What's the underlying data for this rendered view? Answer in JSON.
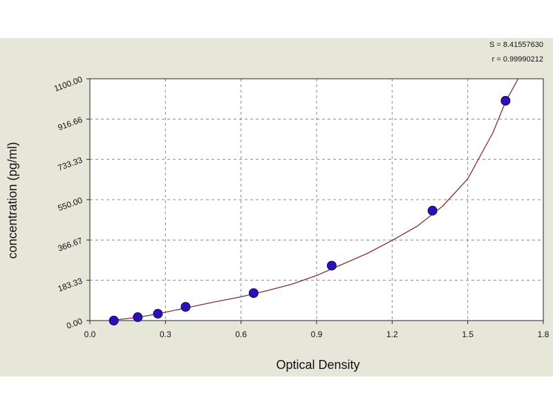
{
  "chart_data": {
    "type": "scatter",
    "title": "",
    "xlabel": "Optical Density",
    "ylabel": "concentration (pg/ml)",
    "xlim": [
      0.0,
      1.8
    ],
    "ylim": [
      0.0,
      1100.0
    ],
    "x_ticks": [
      0.0,
      0.3,
      0.6,
      0.9,
      1.2,
      1.5,
      1.8
    ],
    "x_tick_labels": [
      "0.0",
      "0.3",
      "0.6",
      "0.9",
      "1.2",
      "1.5",
      "1.8"
    ],
    "y_ticks": [
      0.0,
      183.33,
      366.67,
      550.0,
      733.33,
      916.66,
      1100.0
    ],
    "y_tick_labels": [
      "0.00",
      "183.33",
      "366.67",
      "550.00",
      "733.33",
      "916.66",
      "1100.00"
    ],
    "grid": true,
    "points": [
      {
        "x": 0.095,
        "y": 0.0
      },
      {
        "x": 0.19,
        "y": 15.6
      },
      {
        "x": 0.27,
        "y": 31.2
      },
      {
        "x": 0.38,
        "y": 62.5
      },
      {
        "x": 0.65,
        "y": 125.0
      },
      {
        "x": 0.96,
        "y": 250.0
      },
      {
        "x": 1.36,
        "y": 500.0
      },
      {
        "x": 1.65,
        "y": 1000.0
      }
    ],
    "fit_curve": {
      "type": "four-parameter-logistic",
      "x": [
        0.08,
        0.2,
        0.3,
        0.4,
        0.5,
        0.6,
        0.7,
        0.8,
        0.9,
        1.0,
        1.1,
        1.2,
        1.3,
        1.4,
        1.5,
        1.6,
        1.65,
        1.7
      ],
      "y": [
        0.0,
        16.0,
        38.0,
        62.0,
        86.0,
        108.0,
        135.0,
        165.0,
        205.0,
        255.0,
        305.0,
        365.0,
        430.0,
        520.0,
        645.0,
        855.0,
        995.0,
        1100.0
      ]
    },
    "stats": [
      {
        "label": "S = 8.41557630"
      },
      {
        "label": "r = 0.99990212"
      }
    ],
    "colors": {
      "background": "#e6e6d9",
      "plot_area": "#ffffff",
      "point": "#2b10b8",
      "point_edge": "#0e0770",
      "curve": "#8a2a2a",
      "grid": "#888888"
    }
  }
}
